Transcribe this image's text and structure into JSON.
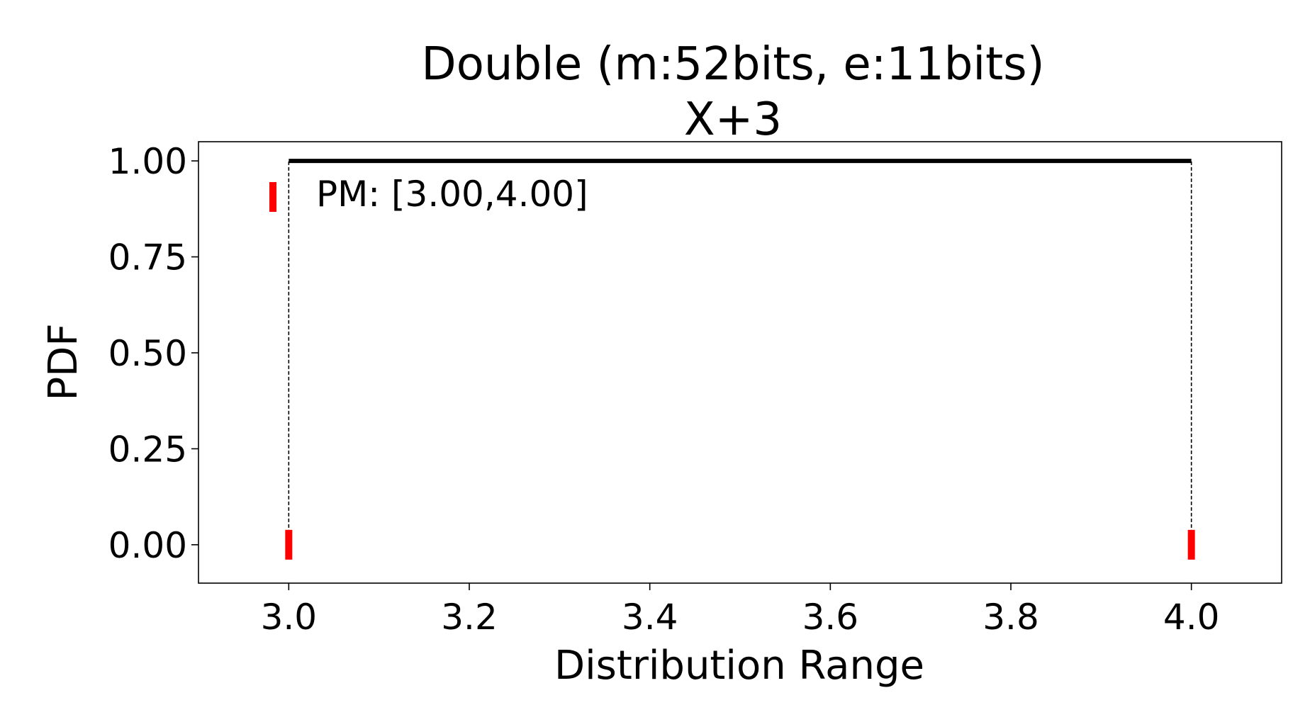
{
  "chart_data": {
    "type": "line",
    "title": "Double (m:52bits, e:11bits)",
    "subtitle": "X+3",
    "xlabel": "Distribution Range",
    "ylabel": "PDF",
    "xlim": [
      2.9,
      4.1
    ],
    "ylim": [
      -0.1,
      1.05
    ],
    "xticks": [
      3.0,
      3.2,
      3.4,
      3.6,
      3.8,
      4.0
    ],
    "xtick_labels": [
      "3.0",
      "3.2",
      "3.4",
      "3.6",
      "3.8",
      "4.0"
    ],
    "yticks": [
      0.0,
      0.25,
      0.5,
      0.75,
      1.0
    ],
    "ytick_labels": [
      "0.00",
      "0.25",
      "0.50",
      "0.75",
      "1.00"
    ],
    "grid": false,
    "legend_position": "upper-left",
    "series": [
      {
        "name": "",
        "style": "solid",
        "color": "#000000",
        "x": [
          3.0,
          4.0
        ],
        "y": [
          1.0,
          1.0
        ]
      }
    ],
    "bounds": {
      "name": "PM: [3.00,4.00]",
      "color": "#ff0000",
      "x": [
        3.0,
        4.0
      ],
      "y": 0.0,
      "guide_color": "#000000"
    }
  }
}
